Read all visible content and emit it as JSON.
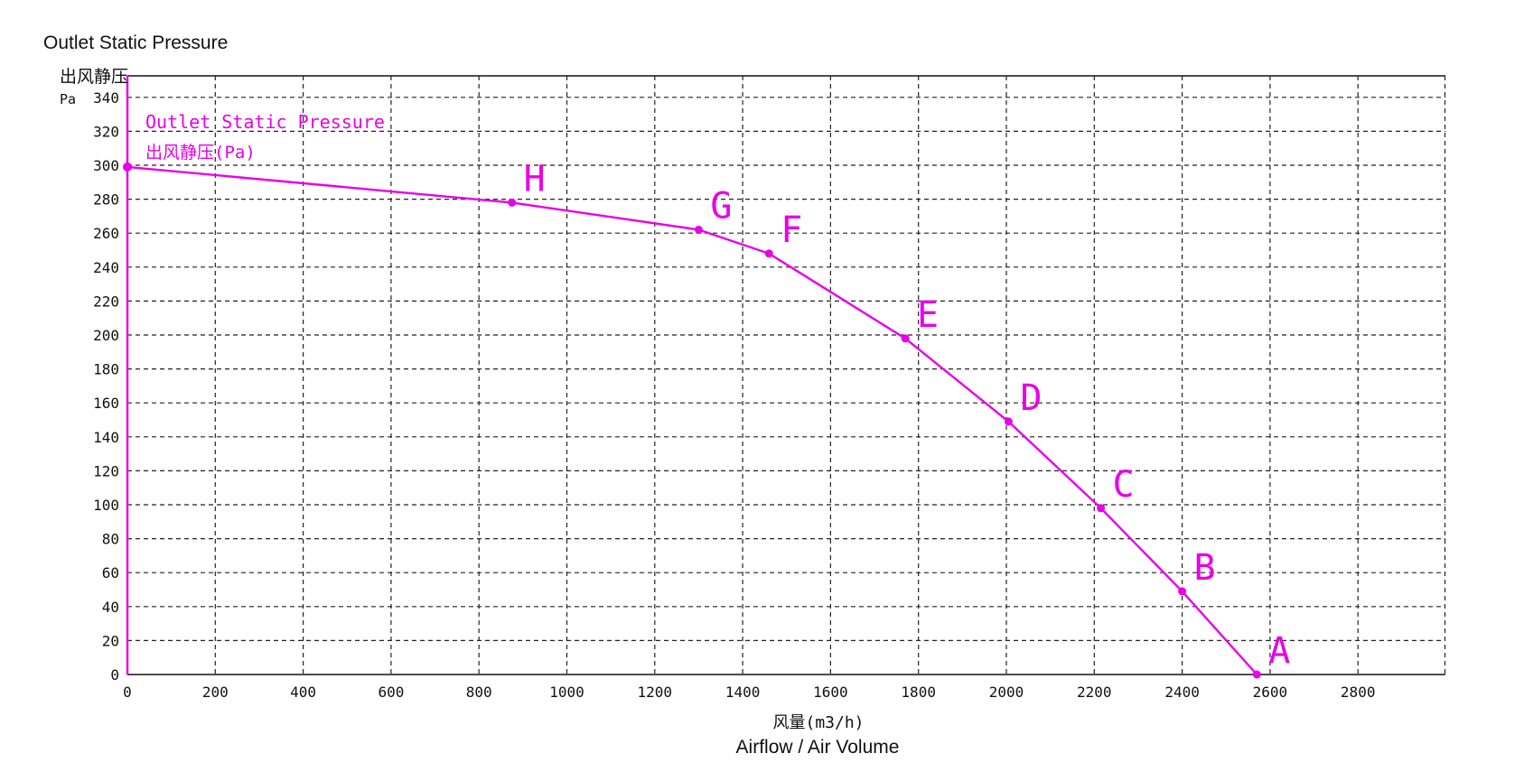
{
  "captions": {
    "top": "Outlet Static Pressure",
    "bottom": "Airflow / Air Volume"
  },
  "chart_data": {
    "type": "line",
    "title": "",
    "ylabel_cn": "出风静压",
    "ylabel_unit": "Pa",
    "xlabel": "风量(m3/h)",
    "xlim": [
      0,
      3000
    ],
    "ylim": [
      0,
      340
    ],
    "x_ticks": [
      0,
      200,
      400,
      600,
      800,
      1000,
      1200,
      1400,
      1600,
      1800,
      2000,
      2200,
      2400,
      2600,
      2800
    ],
    "y_ticks": [
      0,
      20,
      40,
      60,
      80,
      100,
      120,
      140,
      160,
      180,
      200,
      220,
      240,
      260,
      280,
      300,
      320,
      340
    ],
    "grid": true,
    "series": [
      {
        "name": "Outlet Static Pressure",
        "name_cn": "出风静压(Pa)",
        "color": "#e800e8",
        "points": [
          {
            "x": 0,
            "y": 299,
            "label": ""
          },
          {
            "x": 875,
            "y": 278,
            "label": "H"
          },
          {
            "x": 1300,
            "y": 262,
            "label": "G"
          },
          {
            "x": 1460,
            "y": 248,
            "label": "F"
          },
          {
            "x": 1770,
            "y": 198,
            "label": "E"
          },
          {
            "x": 2005,
            "y": 149,
            "label": "D"
          },
          {
            "x": 2215,
            "y": 98,
            "label": "C"
          },
          {
            "x": 2400,
            "y": 49,
            "label": "B"
          },
          {
            "x": 2570,
            "y": 0,
            "label": "A"
          }
        ]
      }
    ]
  }
}
